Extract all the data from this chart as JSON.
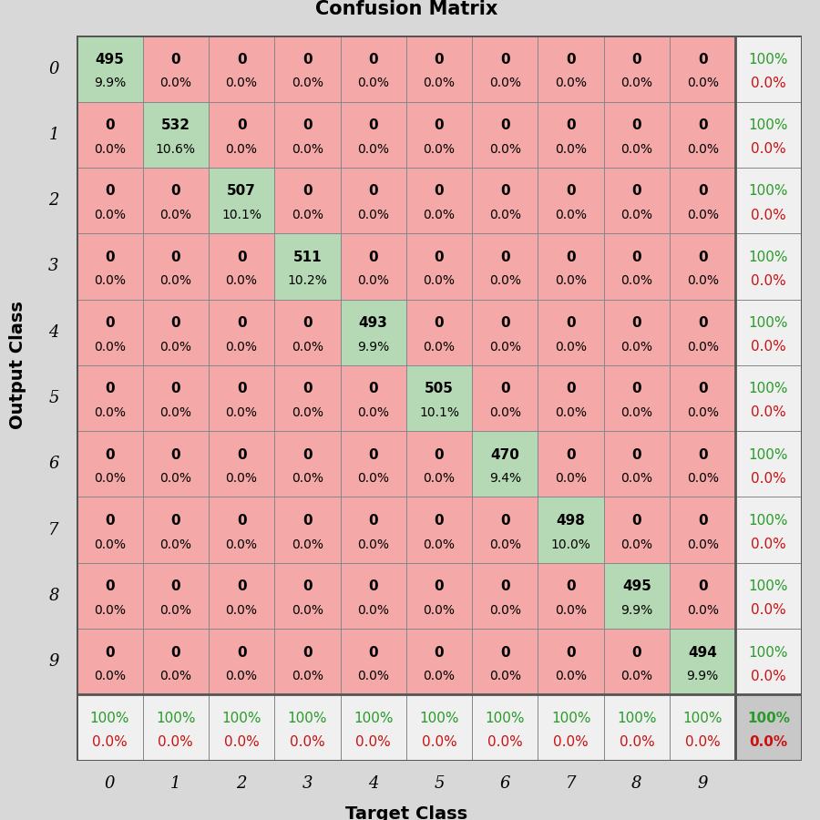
{
  "title": "Confusion Matrix",
  "xlabel": "Target Class",
  "ylabel": "Output Class",
  "classes": [
    "0",
    "1",
    "2",
    "3",
    "4",
    "5",
    "6",
    "7",
    "8",
    "9"
  ],
  "matrix": [
    [
      495,
      0,
      0,
      0,
      0,
      0,
      0,
      0,
      0,
      0
    ],
    [
      0,
      532,
      0,
      0,
      0,
      0,
      0,
      0,
      0,
      0
    ],
    [
      0,
      0,
      507,
      0,
      0,
      0,
      0,
      0,
      0,
      0
    ],
    [
      0,
      0,
      0,
      511,
      0,
      0,
      0,
      0,
      0,
      0
    ],
    [
      0,
      0,
      0,
      0,
      493,
      0,
      0,
      0,
      0,
      0
    ],
    [
      0,
      0,
      0,
      0,
      0,
      505,
      0,
      0,
      0,
      0
    ],
    [
      0,
      0,
      0,
      0,
      0,
      0,
      470,
      0,
      0,
      0
    ],
    [
      0,
      0,
      0,
      0,
      0,
      0,
      0,
      498,
      0,
      0
    ],
    [
      0,
      0,
      0,
      0,
      0,
      0,
      0,
      0,
      495,
      0
    ],
    [
      0,
      0,
      0,
      0,
      0,
      0,
      0,
      0,
      0,
      494
    ]
  ],
  "cell_percents": [
    [
      9.9,
      0.0,
      0.0,
      0.0,
      0.0,
      0.0,
      0.0,
      0.0,
      0.0,
      0.0
    ],
    [
      0.0,
      10.6,
      0.0,
      0.0,
      0.0,
      0.0,
      0.0,
      0.0,
      0.0,
      0.0
    ],
    [
      0.0,
      0.0,
      10.1,
      0.0,
      0.0,
      0.0,
      0.0,
      0.0,
      0.0,
      0.0
    ],
    [
      0.0,
      0.0,
      0.0,
      10.2,
      0.0,
      0.0,
      0.0,
      0.0,
      0.0,
      0.0
    ],
    [
      0.0,
      0.0,
      0.0,
      0.0,
      9.9,
      0.0,
      0.0,
      0.0,
      0.0,
      0.0
    ],
    [
      0.0,
      0.0,
      0.0,
      0.0,
      0.0,
      10.1,
      0.0,
      0.0,
      0.0,
      0.0
    ],
    [
      0.0,
      0.0,
      0.0,
      0.0,
      0.0,
      0.0,
      9.4,
      0.0,
      0.0,
      0.0
    ],
    [
      0.0,
      0.0,
      0.0,
      0.0,
      0.0,
      0.0,
      0.0,
      10.0,
      0.0,
      0.0
    ],
    [
      0.0,
      0.0,
      0.0,
      0.0,
      0.0,
      0.0,
      0.0,
      0.0,
      9.9,
      0.0
    ],
    [
      0.0,
      0.0,
      0.0,
      0.0,
      0.0,
      0.0,
      0.0,
      0.0,
      0.0,
      9.9
    ]
  ],
  "col_precision": [
    100,
    100,
    100,
    100,
    100,
    100,
    100,
    100,
    100,
    100
  ],
  "col_fp_rate": [
    0.0,
    0.0,
    0.0,
    0.0,
    0.0,
    0.0,
    0.0,
    0.0,
    0.0,
    0.0
  ],
  "row_recall": [
    100,
    100,
    100,
    100,
    100,
    100,
    100,
    100,
    100,
    100
  ],
  "row_fn_rate": [
    0.0,
    0.0,
    0.0,
    0.0,
    0.0,
    0.0,
    0.0,
    0.0,
    0.0,
    0.0
  ],
  "overall_accuracy": 100,
  "overall_error": 0.0,
  "bg_color": "#d8d8d8",
  "color_green_diag": "#b5d9b5",
  "color_red_off": "#f5a8a8",
  "color_white_summary": "#f0f0f0",
  "color_gray_corner": "#c8c8c8",
  "color_green_text": "#2a9a2a",
  "color_red_text": "#cc1111",
  "title_fontsize": 15,
  "label_fontsize": 13,
  "cell_count_fontsize": 11,
  "cell_pct_fontsize": 10,
  "summary_fontsize": 11,
  "tick_fontsize": 13
}
